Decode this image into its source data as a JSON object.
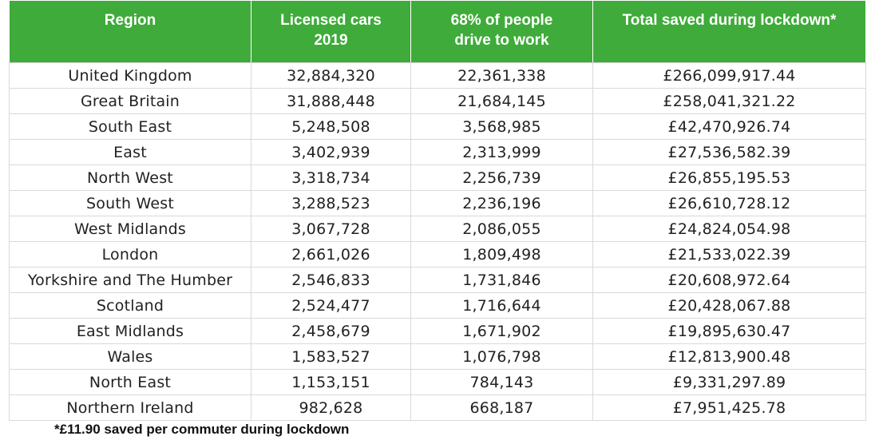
{
  "table": {
    "headers": [
      "Region",
      "Licensed cars 2019",
      "68% of people drive to work",
      "Total saved during lockdown*"
    ],
    "header_lines": [
      [
        "Region",
        ""
      ],
      [
        "Licensed cars",
        "2019"
      ],
      [
        "68% of people",
        "drive to work"
      ],
      [
        "Total saved during lockdown*",
        ""
      ]
    ],
    "rows": [
      [
        "United Kingdom",
        "32,884,320",
        "22,361,338",
        "£266,099,917.44"
      ],
      [
        "Great Britain",
        "31,888,448",
        "21,684,145",
        "£258,041,321.22"
      ],
      [
        "South East",
        "5,248,508",
        "3,568,985",
        "£42,470,926.74"
      ],
      [
        "East",
        "3,402,939",
        "2,313,999",
        "£27,536,582.39"
      ],
      [
        "North West",
        "3,318,734",
        "2,256,739",
        "£26,855,195.53"
      ],
      [
        "South West",
        "3,288,523",
        "2,236,196",
        "£26,610,728.12"
      ],
      [
        "West Midlands",
        "3,067,728",
        "2,086,055",
        "£24,824,054.98"
      ],
      [
        "London",
        "2,661,026",
        "1,809,498",
        "£21,533,022.39"
      ],
      [
        "Yorkshire and The Humber",
        "2,546,833",
        "1,731,846",
        "£20,608,972.64"
      ],
      [
        "Scotland",
        "2,524,477",
        "1,716,644",
        "£20,428,067.88"
      ],
      [
        "East Midlands",
        "2,458,679",
        "1,671,902",
        "£19,895,630.47"
      ],
      [
        "Wales",
        "1,583,527",
        "1,076,798",
        "£12,813,900.48"
      ],
      [
        "North East",
        "1,153,151",
        "784,143",
        "£9,331,297.89"
      ],
      [
        "Northern Ireland",
        "982,628",
        "668,187",
        "£7,951,425.78"
      ]
    ]
  },
  "footnote": "*£11.90 saved per commuter during lockdown",
  "colors": {
    "header_bg": "#3fab3a",
    "header_text": "#ffffff",
    "grid": "#d9d9d9",
    "body_text": "#222222"
  }
}
